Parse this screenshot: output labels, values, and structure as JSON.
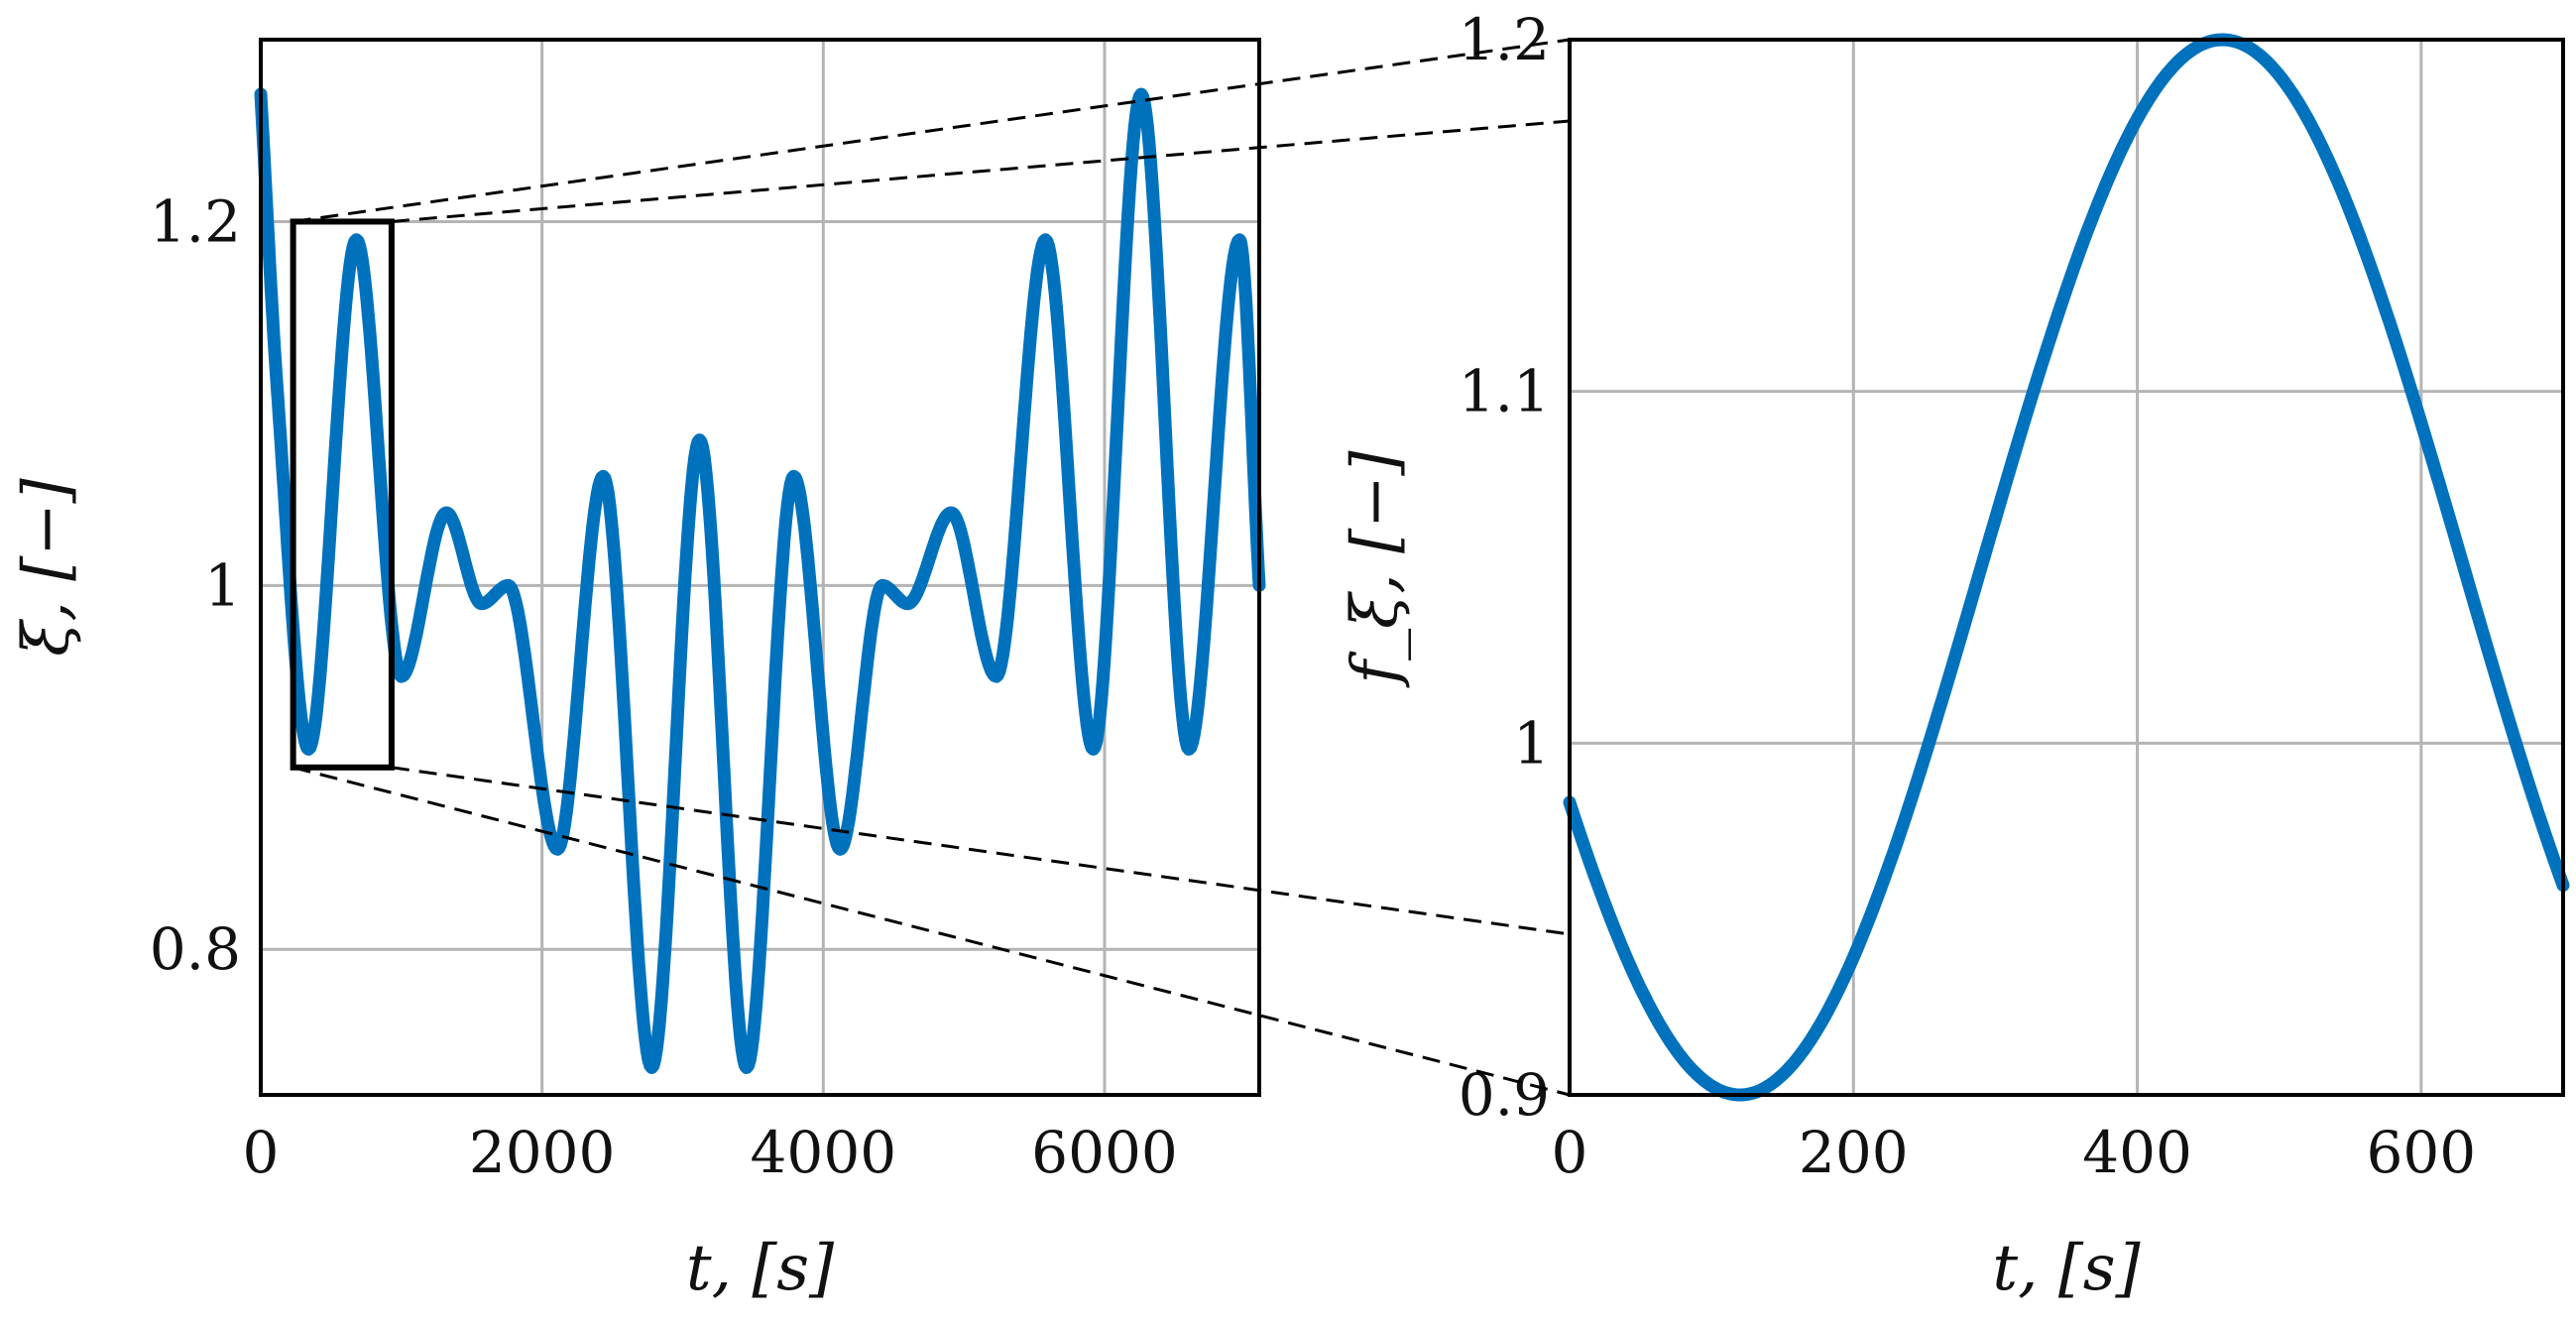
{
  "colors": {
    "series": "#0072BD",
    "grid": "#b4b4b4",
    "axes": "#000000",
    "zoom": "#000000"
  },
  "chart_data": [
    {
      "type": "line",
      "xlabel": "t, [s]",
      "ylabel": "ξ, [−]",
      "xlim": [
        0,
        7100
      ],
      "ylim": [
        0.72,
        1.3
      ],
      "xticks": [
        0,
        2000,
        4000,
        6000
      ],
      "xtick_labels": [
        "0",
        "2000",
        "4000",
        "6000"
      ],
      "yticks": [
        0.8,
        1.0,
        1.2
      ],
      "ytick_labels": [
        "0.8",
        "1",
        "1.2"
      ],
      "grid": true,
      "zoom_box": {
        "x": [
          230,
          930
        ],
        "y": [
          0.9,
          1.2
        ]
      },
      "series": [
        {
          "x": [
            0,
            115,
            340,
            680,
            1000,
            1320,
            1570,
            1760,
            2110,
            2435,
            2780,
            3120,
            3455,
            3790,
            4120,
            4420,
            4600,
            4910,
            5230,
            5580,
            5920,
            6260,
            6600,
            6960,
            7100
          ],
          "values": [
            1.27,
            1.11,
            0.91,
            1.19,
            0.95,
            1.04,
            0.99,
            1.0,
            0.855,
            1.06,
            0.735,
            1.08,
            0.735,
            1.06,
            0.855,
            1.0,
            0.99,
            1.04,
            0.95,
            1.19,
            0.91,
            1.27,
            0.91,
            1.19,
            1.0
          ]
        }
      ]
    },
    {
      "type": "line",
      "xlabel": "t, [s]",
      "ylabel": "f_ξ, [−]",
      "xlim": [
        0,
        700
      ],
      "ylim": [
        0.9,
        1.2
      ],
      "xticks": [
        0,
        200,
        400,
        600
      ],
      "xtick_labels": [
        "0",
        "200",
        "400",
        "600"
      ],
      "yticks": [
        0.9,
        1.0,
        1.1,
        1.2
      ],
      "ytick_labels": [
        "0.9",
        "1",
        "1.1",
        "1.2"
      ],
      "grid": true,
      "series": [
        {
          "mean": 1.05,
          "amplitude": 0.15,
          "period": 680,
          "minimum_at": 120
        }
      ]
    }
  ]
}
